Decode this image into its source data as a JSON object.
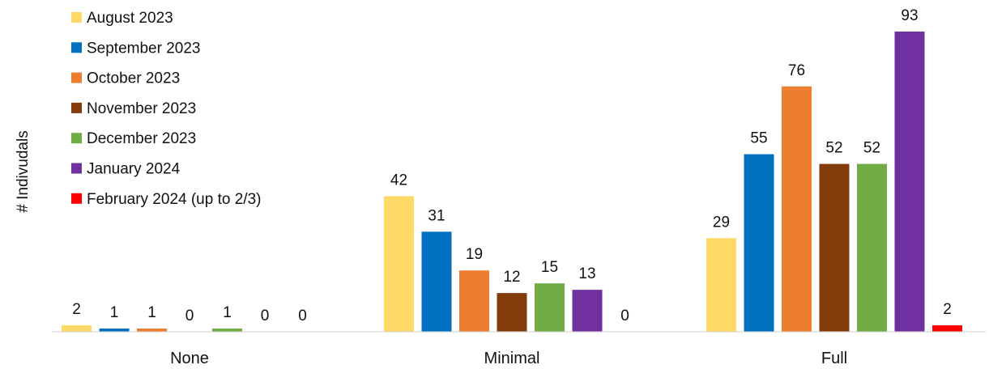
{
  "chart_data": {
    "type": "bar",
    "categories": [
      "None",
      "Minimal",
      "Full"
    ],
    "series": [
      {
        "name": "August 2023",
        "color": "#FFD966",
        "values": [
          2,
          42,
          29
        ]
      },
      {
        "name": "September 2023",
        "color": "#0070C0",
        "values": [
          1,
          31,
          55
        ]
      },
      {
        "name": "October 2023",
        "color": "#ED7D31",
        "values": [
          1,
          19,
          76
        ]
      },
      {
        "name": "November 2023",
        "color": "#843C0C",
        "values": [
          0,
          12,
          52
        ]
      },
      {
        "name": "December 2023",
        "color": "#70AD47",
        "values": [
          1,
          15,
          52
        ]
      },
      {
        "name": "January 2024",
        "color": "#7030A0",
        "values": [
          0,
          13,
          93
        ]
      },
      {
        "name": "February 2024 (up to 2/3)",
        "color": "#FF0000",
        "values": [
          0,
          0,
          2
        ]
      }
    ],
    "ylabel": "# Indivudals",
    "xlabel": "",
    "ylim": [
      0,
      93
    ],
    "grid": false,
    "legend": "top-left",
    "data_labels": true
  }
}
